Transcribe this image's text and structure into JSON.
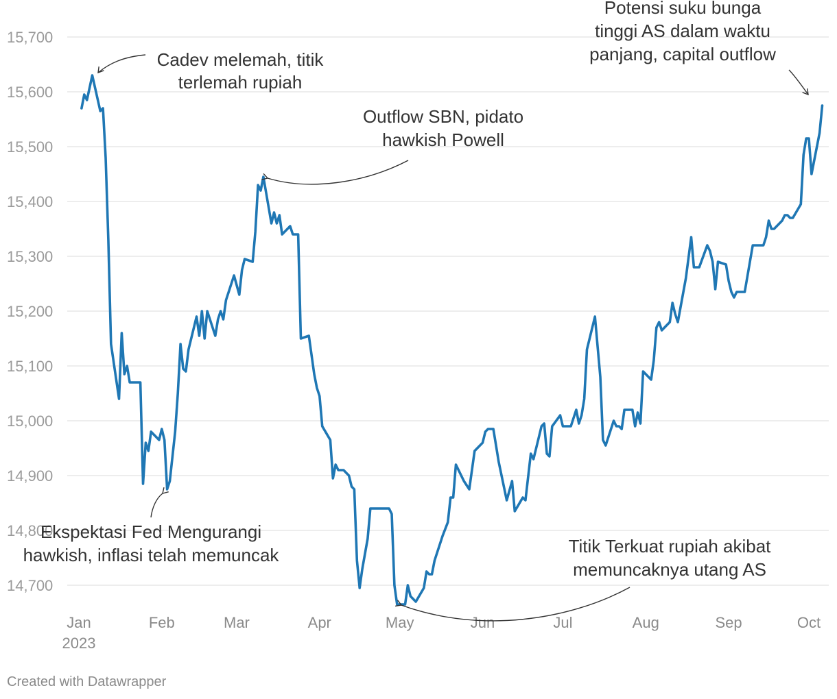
{
  "chart_data": {
    "type": "line",
    "x_unit": "date",
    "ylim": [
      14650,
      15700
    ],
    "y_ticks": [
      15700,
      15600,
      15500,
      15400,
      15300,
      15200,
      15100,
      15000,
      14900,
      14800,
      14700
    ],
    "y_tick_labels": [
      "15,700",
      "15,600",
      "15,500",
      "15,400",
      "15,300",
      "15,200",
      "15,100",
      "15,000",
      "14,900",
      "14,800",
      "14,700"
    ],
    "x_ticks": [
      "2023-01-01",
      "2023-02-01",
      "2023-03-01",
      "2023-04-01",
      "2023-05-01",
      "2023-06-01",
      "2023-07-01",
      "2023-08-01",
      "2023-09-01",
      "2023-10-01"
    ],
    "x_tick_labels": [
      "Jan",
      "Feb",
      "Mar",
      "Apr",
      "May",
      "Jun",
      "Jul",
      "Aug",
      "Sep",
      "Oct"
    ],
    "x_tick_sublabel": "2023",
    "grid": true,
    "series": [
      {
        "color": "#1f77b4",
        "points": [
          [
            "2023-01-02",
            15570
          ],
          [
            "2023-01-03",
            15595
          ],
          [
            "2023-01-04",
            15585
          ],
          [
            "2023-01-06",
            15630
          ],
          [
            "2023-01-09",
            15565
          ],
          [
            "2023-01-10",
            15570
          ],
          [
            "2023-01-11",
            15480
          ],
          [
            "2023-01-12",
            15330
          ],
          [
            "2023-01-13",
            15140
          ],
          [
            "2023-01-16",
            15040
          ],
          [
            "2023-01-17",
            15160
          ],
          [
            "2023-01-18",
            15085
          ],
          [
            "2023-01-19",
            15100
          ],
          [
            "2023-01-20",
            15070
          ],
          [
            "2023-01-24",
            15070
          ],
          [
            "2023-01-25",
            14885
          ],
          [
            "2023-01-26",
            14960
          ],
          [
            "2023-01-27",
            14945
          ],
          [
            "2023-01-28",
            14980
          ],
          [
            "2023-01-31",
            14965
          ],
          [
            "2023-02-01",
            14985
          ],
          [
            "2023-02-02",
            14965
          ],
          [
            "2023-02-03",
            14875
          ],
          [
            "2023-02-04",
            14890
          ],
          [
            "2023-02-06",
            14980
          ],
          [
            "2023-02-07",
            15050
          ],
          [
            "2023-02-08",
            15140
          ],
          [
            "2023-02-09",
            15095
          ],
          [
            "2023-02-10",
            15090
          ],
          [
            "2023-02-11",
            15130
          ],
          [
            "2023-02-14",
            15190
          ],
          [
            "2023-02-15",
            15155
          ],
          [
            "2023-02-16",
            15200
          ],
          [
            "2023-02-17",
            15150
          ],
          [
            "2023-02-18",
            15200
          ],
          [
            "2023-02-21",
            15155
          ],
          [
            "2023-02-22",
            15185
          ],
          [
            "2023-02-23",
            15200
          ],
          [
            "2023-02-24",
            15185
          ],
          [
            "2023-02-25",
            15220
          ],
          [
            "2023-02-28",
            15265
          ],
          [
            "2023-03-02",
            15230
          ],
          [
            "2023-03-03",
            15275
          ],
          [
            "2023-03-04",
            15295
          ],
          [
            "2023-03-07",
            15290
          ],
          [
            "2023-03-08",
            15345
          ],
          [
            "2023-03-09",
            15430
          ],
          [
            "2023-03-10",
            15420
          ],
          [
            "2023-03-11",
            15445
          ],
          [
            "2023-03-14",
            15360
          ],
          [
            "2023-03-15",
            15380
          ],
          [
            "2023-03-16",
            15360
          ],
          [
            "2023-03-17",
            15375
          ],
          [
            "2023-03-18",
            15340
          ],
          [
            "2023-03-21",
            15355
          ],
          [
            "2023-03-22",
            15340
          ],
          [
            "2023-03-24",
            15340
          ],
          [
            "2023-03-25",
            15150
          ],
          [
            "2023-03-28",
            15155
          ],
          [
            "2023-03-30",
            15085
          ],
          [
            "2023-03-31",
            15060
          ],
          [
            "2023-04-01",
            15045
          ],
          [
            "2023-04-02",
            14990
          ],
          [
            "2023-04-05",
            14965
          ],
          [
            "2023-04-06",
            14895
          ],
          [
            "2023-04-07",
            14920
          ],
          [
            "2023-04-08",
            14910
          ],
          [
            "2023-04-10",
            14910
          ],
          [
            "2023-04-12",
            14900
          ],
          [
            "2023-04-13",
            14880
          ],
          [
            "2023-04-14",
            14875
          ],
          [
            "2023-04-15",
            14745
          ],
          [
            "2023-04-16",
            14695
          ],
          [
            "2023-04-17",
            14730
          ],
          [
            "2023-04-19",
            14785
          ],
          [
            "2023-04-20",
            14840
          ],
          [
            "2023-04-27",
            14840
          ],
          [
            "2023-04-28",
            14830
          ],
          [
            "2023-04-29",
            14700
          ],
          [
            "2023-04-30",
            14665
          ],
          [
            "2023-05-03",
            14665
          ],
          [
            "2023-05-04",
            14700
          ],
          [
            "2023-05-05",
            14680
          ],
          [
            "2023-05-07",
            14670
          ],
          [
            "2023-05-10",
            14695
          ],
          [
            "2023-05-11",
            14725
          ],
          [
            "2023-05-12",
            14720
          ],
          [
            "2023-05-13",
            14720
          ],
          [
            "2023-05-14",
            14745
          ],
          [
            "2023-05-17",
            14790
          ],
          [
            "2023-05-19",
            14815
          ],
          [
            "2023-05-20",
            14860
          ],
          [
            "2023-05-21",
            14860
          ],
          [
            "2023-05-22",
            14920
          ],
          [
            "2023-05-25",
            14890
          ],
          [
            "2023-05-27",
            14875
          ],
          [
            "2023-05-29",
            14945
          ],
          [
            "2023-06-01",
            14960
          ],
          [
            "2023-06-02",
            14980
          ],
          [
            "2023-06-03",
            14985
          ],
          [
            "2023-06-05",
            14985
          ],
          [
            "2023-06-07",
            14925
          ],
          [
            "2023-06-10",
            14855
          ],
          [
            "2023-06-12",
            14890
          ],
          [
            "2023-06-13",
            14835
          ],
          [
            "2023-06-16",
            14860
          ],
          [
            "2023-06-17",
            14855
          ],
          [
            "2023-06-19",
            14940
          ],
          [
            "2023-06-20",
            14930
          ],
          [
            "2023-06-23",
            14990
          ],
          [
            "2023-06-24",
            14995
          ],
          [
            "2023-06-25",
            14940
          ],
          [
            "2023-06-26",
            14935
          ],
          [
            "2023-06-27",
            14990
          ],
          [
            "2023-06-30",
            15010
          ],
          [
            "2023-07-01",
            14990
          ],
          [
            "2023-07-04",
            14990
          ],
          [
            "2023-07-06",
            15020
          ],
          [
            "2023-07-07",
            14995
          ],
          [
            "2023-07-08",
            15010
          ],
          [
            "2023-07-09",
            15040
          ],
          [
            "2023-07-10",
            15130
          ],
          [
            "2023-07-13",
            15190
          ],
          [
            "2023-07-15",
            15080
          ],
          [
            "2023-07-16",
            14965
          ],
          [
            "2023-07-17",
            14955
          ],
          [
            "2023-07-20",
            15000
          ],
          [
            "2023-07-21",
            14990
          ],
          [
            "2023-07-22",
            14990
          ],
          [
            "2023-07-23",
            14985
          ],
          [
            "2023-07-24",
            15020
          ],
          [
            "2023-07-27",
            15020
          ],
          [
            "2023-07-28",
            14990
          ],
          [
            "2023-07-29",
            15015
          ],
          [
            "2023-07-30",
            14995
          ],
          [
            "2023-07-31",
            15090
          ],
          [
            "2023-08-03",
            15075
          ],
          [
            "2023-08-04",
            15110
          ],
          [
            "2023-08-05",
            15170
          ],
          [
            "2023-08-06",
            15180
          ],
          [
            "2023-08-07",
            15165
          ],
          [
            "2023-08-10",
            15180
          ],
          [
            "2023-08-11",
            15215
          ],
          [
            "2023-08-12",
            15195
          ],
          [
            "2023-08-13",
            15180
          ],
          [
            "2023-08-16",
            15260
          ],
          [
            "2023-08-18",
            15335
          ],
          [
            "2023-08-19",
            15280
          ],
          [
            "2023-08-21",
            15280
          ],
          [
            "2023-08-24",
            15320
          ],
          [
            "2023-08-25",
            15310
          ],
          [
            "2023-08-26",
            15290
          ],
          [
            "2023-08-27",
            15240
          ],
          [
            "2023-08-28",
            15290
          ],
          [
            "2023-08-31",
            15285
          ],
          [
            "2023-09-01",
            15255
          ],
          [
            "2023-09-02",
            15235
          ],
          [
            "2023-09-03",
            15225
          ],
          [
            "2023-09-04",
            15235
          ],
          [
            "2023-09-07",
            15235
          ],
          [
            "2023-09-10",
            15320
          ],
          [
            "2023-09-14",
            15320
          ],
          [
            "2023-09-15",
            15335
          ],
          [
            "2023-09-16",
            15365
          ],
          [
            "2023-09-17",
            15350
          ],
          [
            "2023-09-18",
            15350
          ],
          [
            "2023-09-21",
            15365
          ],
          [
            "2023-09-22",
            15375
          ],
          [
            "2023-09-23",
            15375
          ],
          [
            "2023-09-24",
            15370
          ],
          [
            "2023-09-25",
            15370
          ],
          [
            "2023-09-28",
            15395
          ],
          [
            "2023-09-29",
            15485
          ],
          [
            "2023-09-30",
            15515
          ],
          [
            "2023-10-01",
            15515
          ],
          [
            "2023-10-02",
            15450
          ],
          [
            "2023-10-05",
            15525
          ],
          [
            "2023-10-06",
            15575
          ]
        ]
      }
    ],
    "annotations": [
      {
        "lines": [
          "Cadev melemah, titik",
          "terlemah rupiah"
        ],
        "date": "2023-01-06",
        "value": 15630
      },
      {
        "lines": [
          "Outflow SBN, pidato",
          "hawkish Powell"
        ],
        "date": "2023-03-11",
        "value": 15445
      },
      {
        "lines": [
          "Potensi suku bunga",
          "tinggi AS dalam waktu",
          "panjang, capital outflow"
        ],
        "date": "2023-10-05",
        "value": 15595
      },
      {
        "lines": [
          "Ekspektasi Fed Mengurangi",
          "hawkish, inflasi telah memuncak"
        ],
        "date": "2023-02-03",
        "value": 14875
      },
      {
        "lines": [
          "Titik Terkuat rupiah akibat",
          "memuncaknya utang AS"
        ],
        "date": "2023-04-30",
        "value": 14665
      }
    ]
  },
  "footer": {
    "credit": "Created with Datawrapper"
  }
}
